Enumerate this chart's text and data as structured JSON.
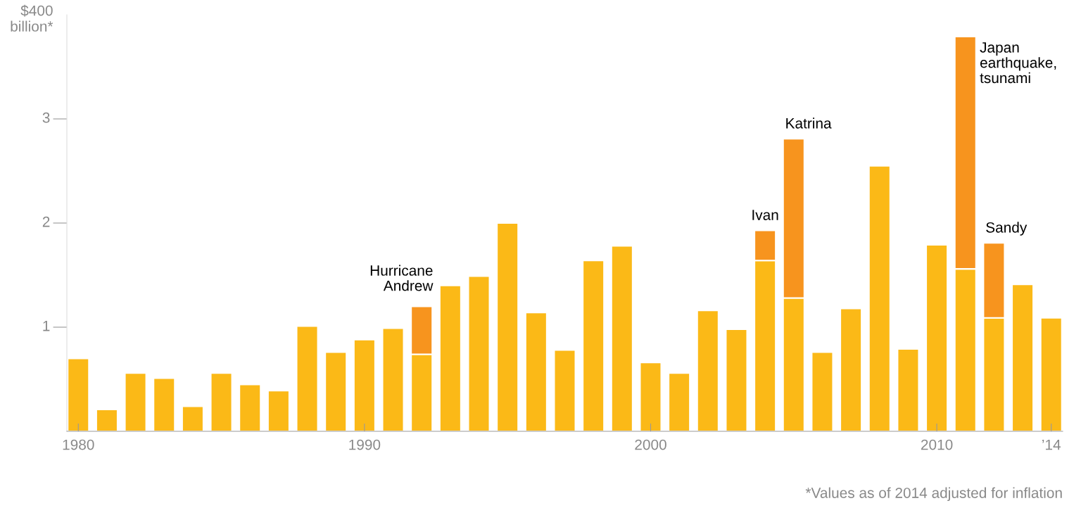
{
  "chart_data": {
    "type": "bar",
    "stacked": true,
    "x": [
      1980,
      1981,
      1982,
      1983,
      1984,
      1985,
      1986,
      1987,
      1988,
      1989,
      1990,
      1991,
      1992,
      1993,
      1994,
      1995,
      1996,
      1997,
      1998,
      1999,
      2000,
      2001,
      2002,
      2003,
      2004,
      2005,
      2006,
      2007,
      2008,
      2009,
      2010,
      2011,
      2012,
      2013,
      2014
    ],
    "series": [
      {
        "color": "#fbb917",
        "values": [
          0.7,
          0.21,
          0.56,
          0.51,
          0.24,
          0.56,
          0.45,
          0.39,
          1.01,
          0.76,
          0.88,
          0.99,
          0.74,
          1.4,
          1.49,
          2.0,
          1.14,
          0.78,
          1.64,
          1.78,
          0.66,
          0.56,
          1.16,
          0.98,
          1.64,
          1.28,
          0.76,
          1.18,
          2.55,
          0.79,
          1.79,
          1.56,
          1.09,
          1.41,
          1.09
        ]
      },
      {
        "color": "#f7941e",
        "values": [
          null,
          null,
          null,
          null,
          null,
          null,
          null,
          null,
          null,
          null,
          null,
          null,
          0.46,
          null,
          null,
          null,
          null,
          null,
          null,
          null,
          null,
          null,
          null,
          null,
          0.29,
          1.53,
          null,
          null,
          null,
          null,
          null,
          2.23,
          0.72,
          null,
          null
        ]
      }
    ],
    "xlim": [
      1979.6,
      2014.4
    ],
    "xticks": [
      1980,
      1990,
      2000,
      2010,
      {
        "value": 2014,
        "label": "’14"
      }
    ],
    "ylim": [
      0,
      4
    ],
    "yticks": [
      1,
      2,
      3
    ],
    "ylabel": "$400\nbillion*",
    "grid": false,
    "annotations": [
      {
        "text": "Hurricane\nAndrew",
        "x": 1992,
        "y": 1.2
      },
      {
        "text": "Ivan",
        "x": 2004,
        "y": 1.93
      },
      {
        "text": "Katrina",
        "x": 2005,
        "y": 2.81
      },
      {
        "text": "Japan\nearthquake,\ntsunami",
        "x": 2011,
        "y": 3.79
      },
      {
        "text": "Sandy",
        "x": 2012,
        "y": 1.81
      },
      "*Values as of 2014 adjusted for inflation"
    ]
  }
}
